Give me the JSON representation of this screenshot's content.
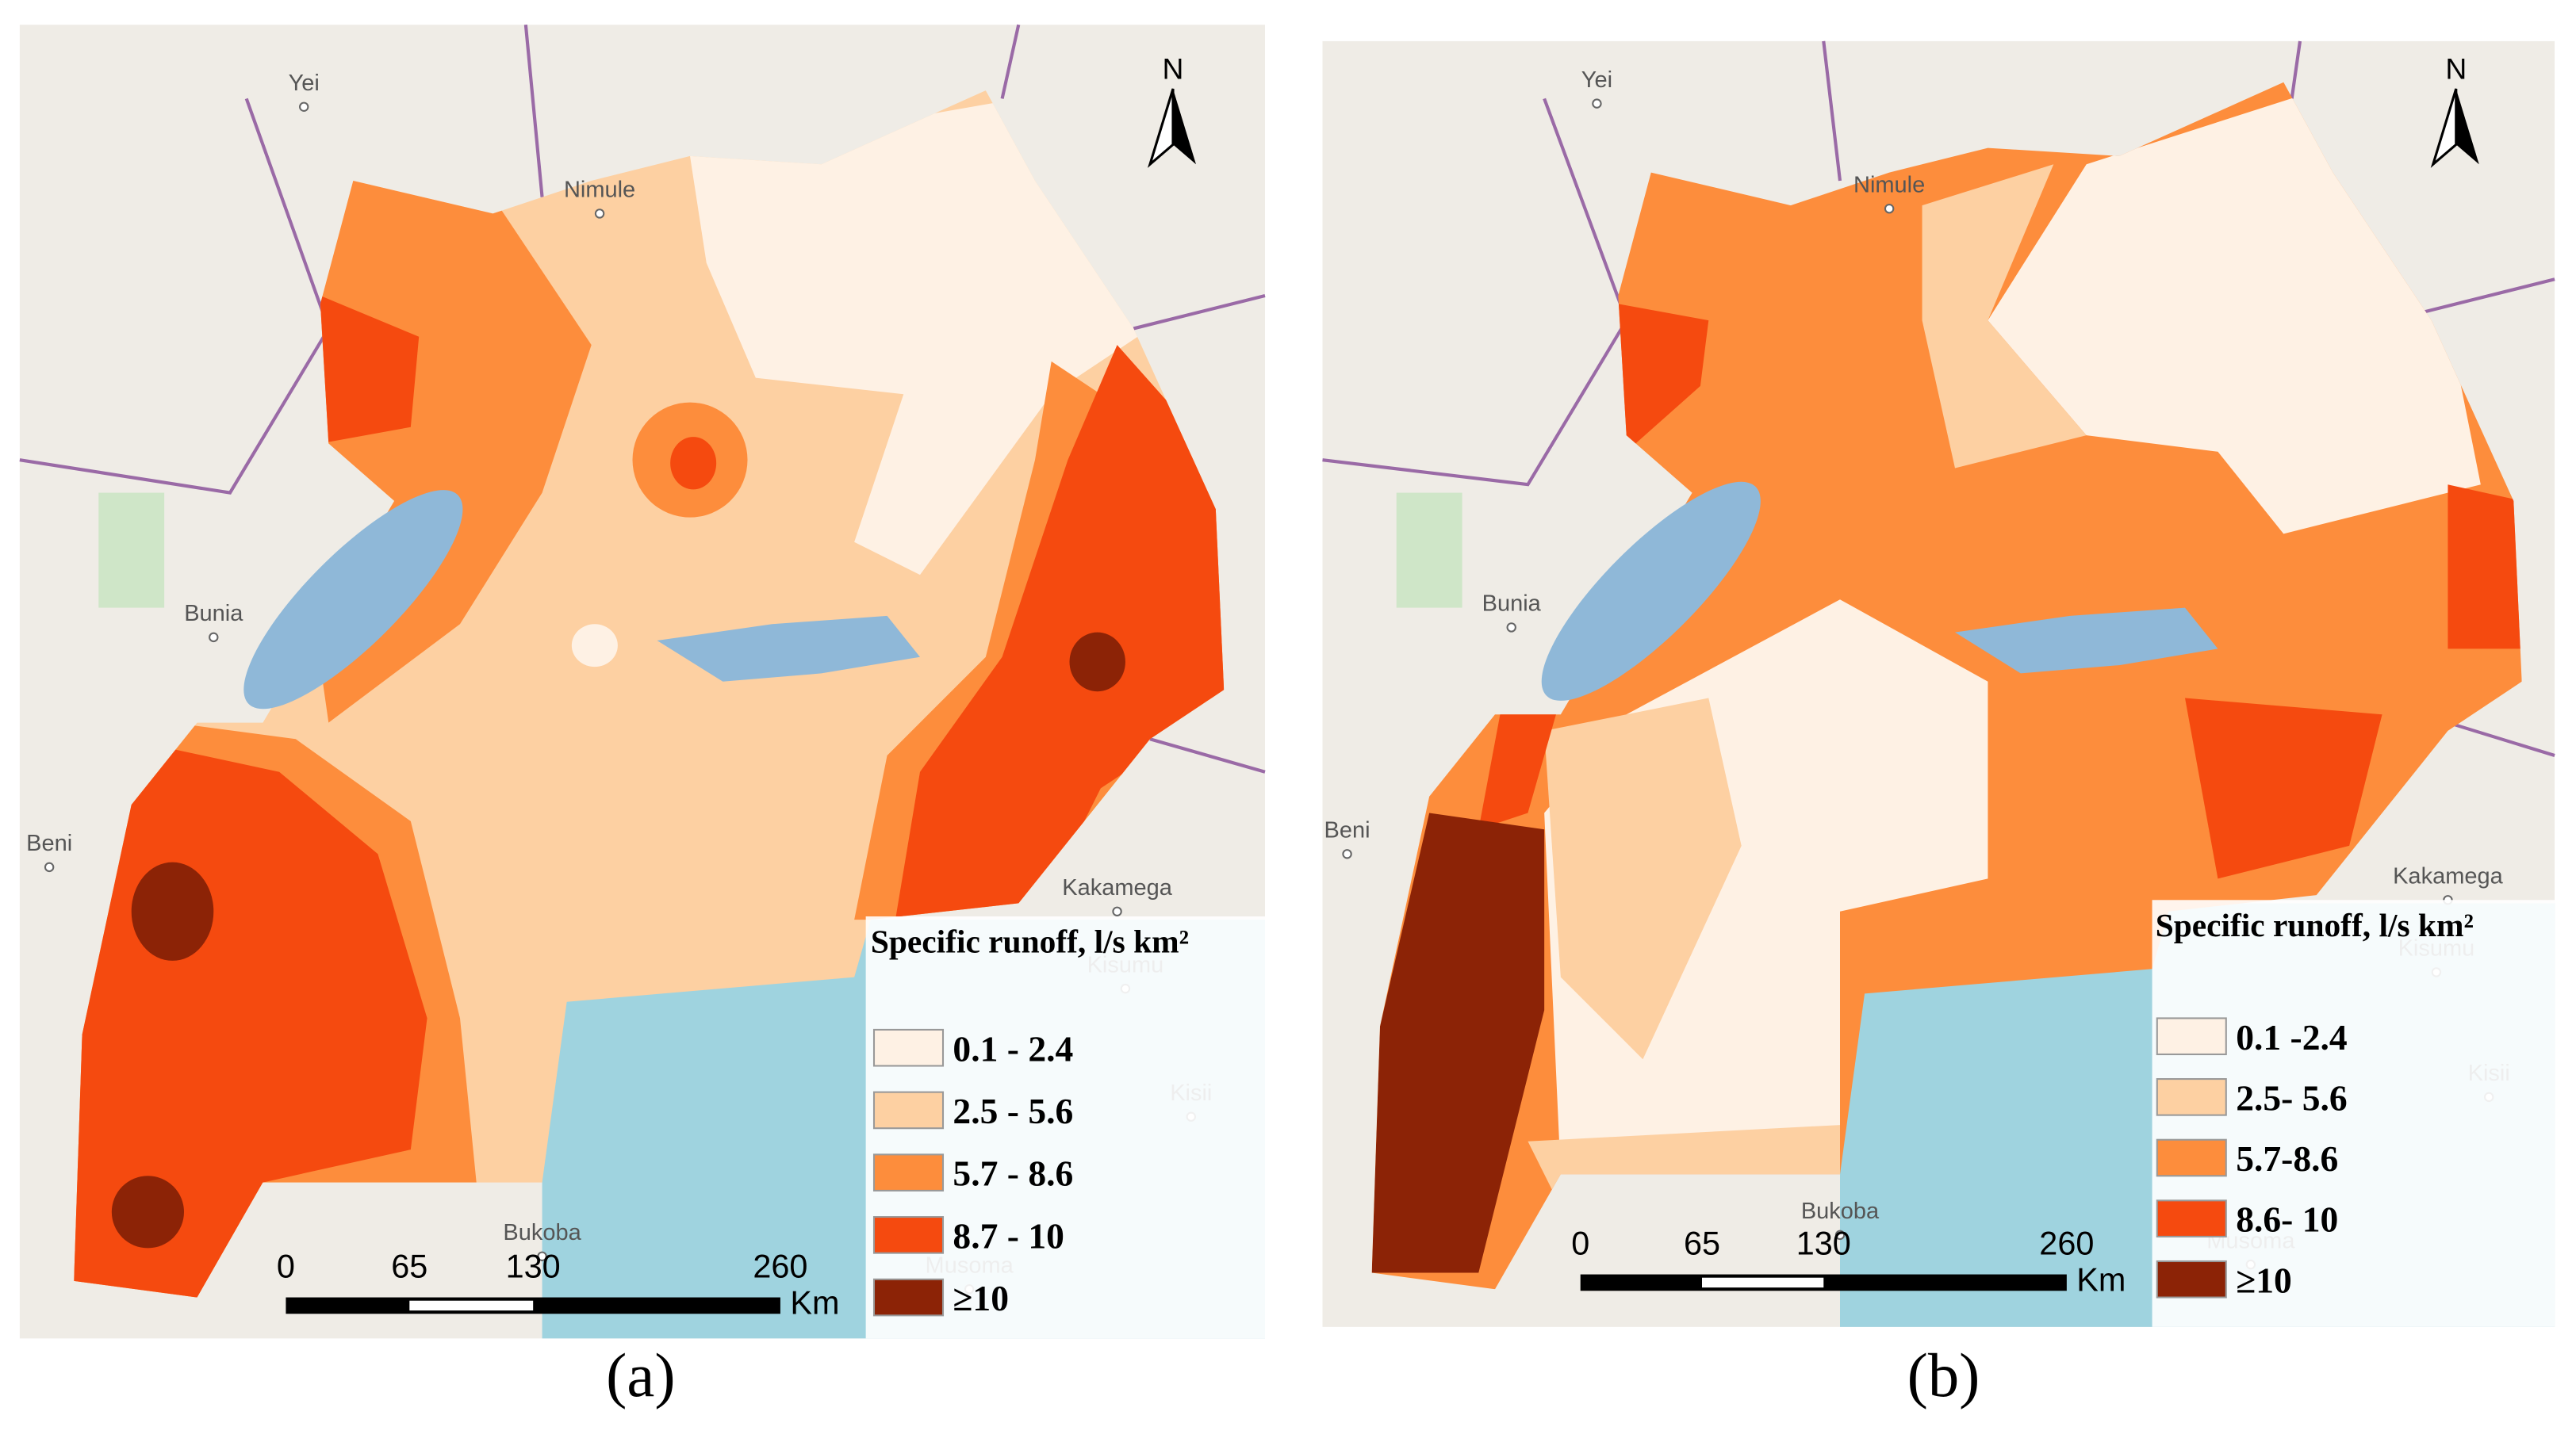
{
  "panels": [
    {
      "label": "(a)",
      "north": "N",
      "places": [
        "Yei",
        "Nimule",
        "Bunia",
        "Beni",
        "Kakamega",
        "Kisumu",
        "Kisii",
        "Bukoba",
        "Musoma"
      ],
      "legend": {
        "title": "Specific runoff, l/s km²",
        "classes": [
          {
            "label": "0.1 - 2.4",
            "color": "#fef1e4"
          },
          {
            "label": "2.5 - 5.6",
            "color": "#fdd0a2"
          },
          {
            "label": "5.7 - 8.6",
            "color": "#fd8d3c"
          },
          {
            "label": "8.7 - 10",
            "color": "#f54a0f"
          },
          {
            "label": "≥10",
            "color": "#8c2306"
          }
        ]
      },
      "scale_bar": {
        "ticks": [
          "0",
          "65",
          "130",
          "260"
        ],
        "unit": "Km"
      }
    },
    {
      "label": "(b)",
      "north": "N",
      "places": [
        "Yei",
        "Nimule",
        "Bunia",
        "Beni",
        "Kakamega",
        "Kisumu",
        "Kisii",
        "Bukoba",
        "Musoma"
      ],
      "legend": {
        "title": "Specific runoff, l/s km²",
        "classes": [
          {
            "label": "0.1 -2.4",
            "color": "#fef1e4"
          },
          {
            "label": "2.5- 5.6",
            "color": "#fdd0a2"
          },
          {
            "label": "5.7-8.6",
            "color": "#fd8d3c"
          },
          {
            "label": "8.6- 10",
            "color": "#f54a0f"
          },
          {
            "label": "≥10",
            "color": "#8c2306"
          }
        ]
      },
      "scale_bar": {
        "ticks": [
          "0",
          "65",
          "130",
          "260"
        ],
        "unit": "Km"
      }
    }
  ]
}
